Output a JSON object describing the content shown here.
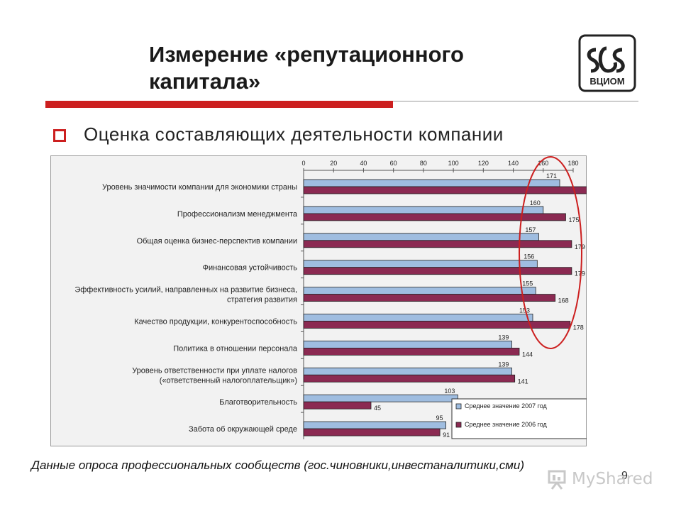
{
  "slide": {
    "title": "Измерение «репутационного капитала»",
    "subtitle": "Оценка составляющих деятельности компании",
    "footnote": "Данные опроса профессиональных сообществ (гос.чиновники,инвестаналитики,сми)",
    "page_number": "9",
    "logo_text": "ВЦИОМ",
    "watermark": "MyShared",
    "colors": {
      "accent_red": "#cc1f1f",
      "series_2007": "#9fbde0",
      "series_2006": "#8b2a52"
    }
  },
  "chart_data": {
    "type": "bar",
    "orientation": "horizontal",
    "categories": [
      "Уровень значимости компании для экономики страны",
      "Профессионализм менеджмента",
      "Общая оценка бизнес-перспектив компании",
      "Финансовая устойчивость",
      "Эффективность усилий, направленных на развитие бизнеса, стратегия развития",
      "Качество продукции, конкурентоспособность",
      "Политика в отношении персонала",
      "Уровень ответственности при уплате налогов («ответственный налогоплательщик»)",
      "Благотворительность",
      "Забота об окружающей среде"
    ],
    "series": [
      {
        "name": "Среднее значение 2007 год",
        "values": [
          171,
          160,
          157,
          156,
          155,
          153,
          139,
          139,
          103,
          95
        ]
      },
      {
        "name": "Среднее значение 2006 год",
        "values": [
          189,
          175,
          179,
          179,
          168,
          178,
          144,
          141,
          45,
          91
        ]
      }
    ],
    "value_labels_2006": [
      "189",
      "175",
      "179",
      "179",
      "168",
      "178",
      "144",
      "141",
      "45",
      "91"
    ],
    "xlim": [
      0,
      180
    ],
    "xticks": [
      "0",
      "20",
      "40",
      "60",
      "80",
      "100",
      "120",
      "140",
      "160",
      "180"
    ],
    "axis_position": "top",
    "legend_position": "bottom-right",
    "annotation": "red ellipse highlighting top-right values"
  }
}
